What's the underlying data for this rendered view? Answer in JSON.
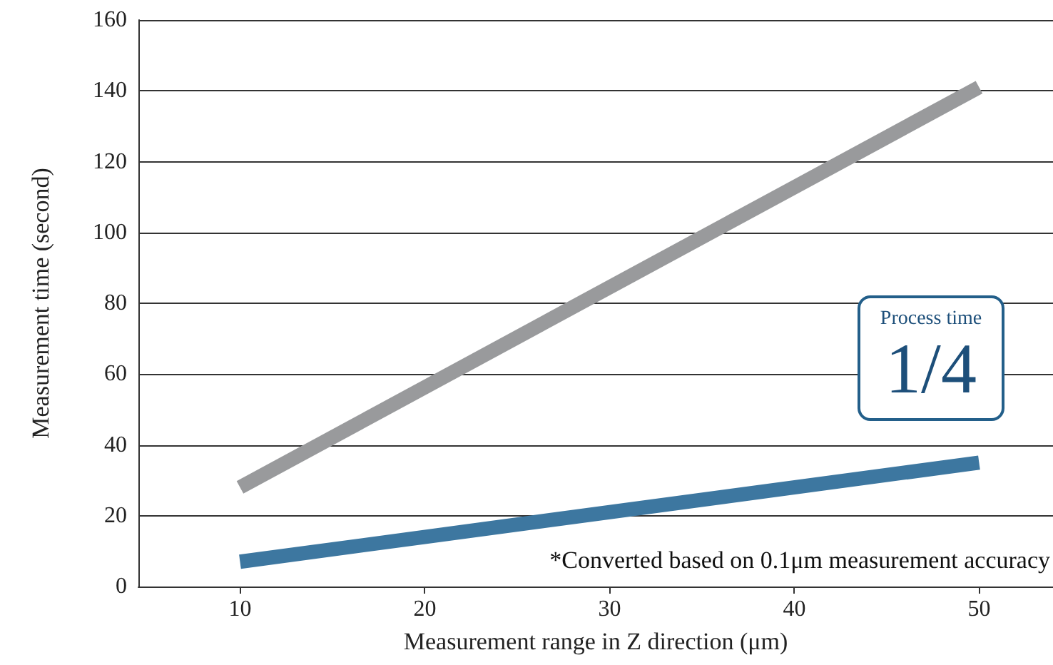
{
  "chart_data": {
    "type": "line",
    "xlabel": "Measurement range in Z direction (μm)",
    "ylabel": "Measurement time (second)",
    "x": [
      10,
      50
    ],
    "series": [
      {
        "color": "#999a9c",
        "values": [
          28,
          141
        ]
      },
      {
        "color": "#3d77a0",
        "values": [
          7,
          35
        ]
      }
    ],
    "xlim": [
      4.5,
      54
    ],
    "xticks": [
      10,
      20,
      30,
      40,
      50
    ],
    "ylim": [
      0,
      160
    ],
    "yticks": [
      0,
      20,
      40,
      60,
      80,
      100,
      120,
      140,
      160
    ],
    "grid": "y",
    "marker": "none",
    "line_style": "solid",
    "annotations": [
      "Process time",
      "1/4",
      "*Converted based on 0.1μm measurement accuracy"
    ]
  }
}
